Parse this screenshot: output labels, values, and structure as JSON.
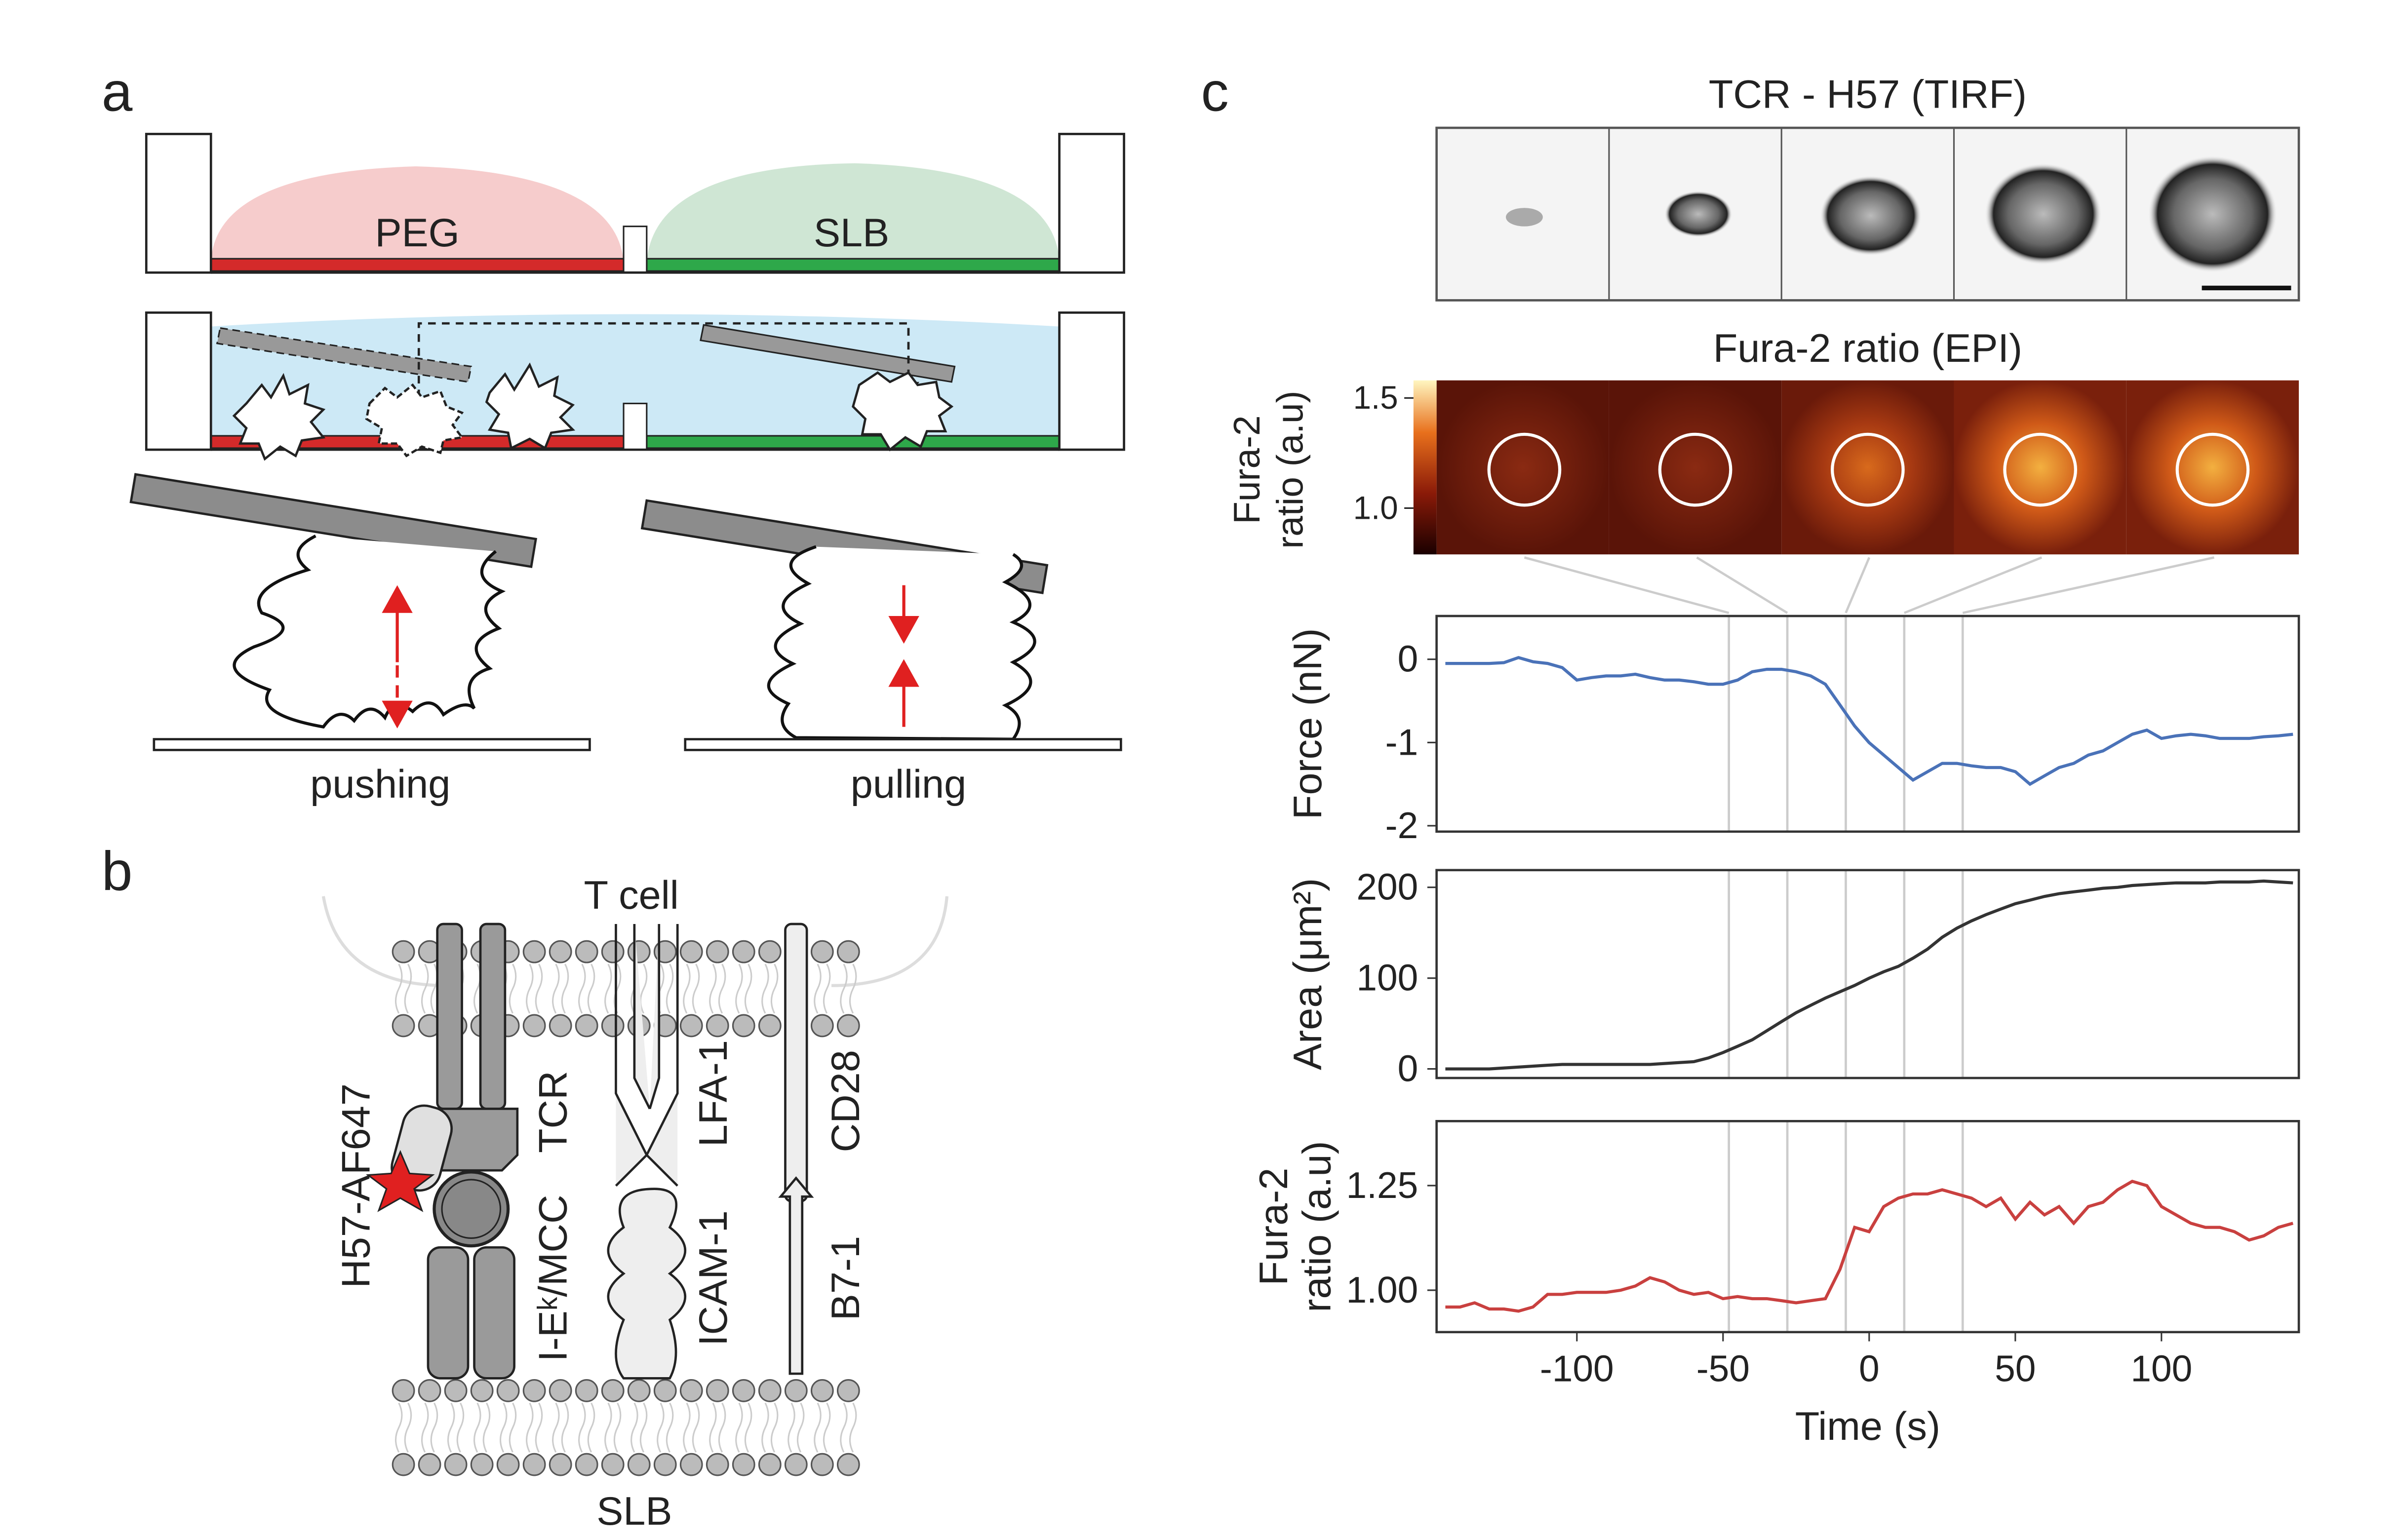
{
  "panels": {
    "a": {
      "label": "a",
      "left": "PEG",
      "right": "SLB",
      "mode_left": "pushing",
      "mode_right": "pulling"
    },
    "b": {
      "label": "b",
      "top": "T cell",
      "bottom": "SLB",
      "antibody": "H57-AF647",
      "tcr": "TCR",
      "mhc": "I-Eᵏ/MCC",
      "lfa": "LFA-1",
      "icam": "ICAM-1",
      "cd28": "CD28",
      "b7": "B7-1"
    },
    "c": {
      "label": "c",
      "tirf_title": "TCR - H57 (TIRF)",
      "epi_title": "Fura-2 ratio (EPI)",
      "colorbar": {
        "lim": [
          0.79,
          1.58
        ],
        "ticks": [
          1.5,
          {
            "value": 1,
            "label": "1.0"
          }
        ],
        "label": [
          "Fura-2",
          "ratio (a.u)"
        ]
      },
      "time_markers": [
        -48,
        -28,
        -8,
        12,
        32
      ]
    }
  },
  "chart_data": [
    {
      "type": "line",
      "ylabel": "Force (nN)",
      "color": "#4a72b8",
      "x": [
        -145,
        -140,
        -135,
        -130,
        -125,
        -120,
        -115,
        -110,
        -105,
        -100,
        -95,
        -90,
        -85,
        -80,
        -75,
        -70,
        -65,
        -60,
        -55,
        -50,
        -45,
        -40,
        -35,
        -30,
        -25,
        -20,
        -15,
        -10,
        -5,
        0,
        5,
        10,
        15,
        20,
        25,
        30,
        35,
        40,
        45,
        50,
        55,
        60,
        65,
        70,
        75,
        80,
        85,
        90,
        95,
        100,
        105,
        110,
        115,
        120,
        125,
        130,
        135,
        140,
        145
      ],
      "values": [
        -0.05,
        -0.05,
        -0.05,
        -0.05,
        -0.04,
        0.02,
        -0.03,
        -0.05,
        -0.1,
        -0.25,
        -0.22,
        -0.2,
        -0.2,
        -0.18,
        -0.22,
        -0.25,
        -0.25,
        -0.27,
        -0.3,
        -0.3,
        -0.25,
        -0.15,
        -0.12,
        -0.12,
        -0.15,
        -0.2,
        -0.3,
        -0.55,
        -0.8,
        -1.0,
        -1.15,
        -1.3,
        -1.45,
        -1.35,
        -1.25,
        -1.25,
        -1.28,
        -1.3,
        -1.3,
        -1.35,
        -1.5,
        -1.4,
        -1.3,
        -1.25,
        -1.15,
        -1.1,
        -1.0,
        -0.9,
        -0.85,
        -0.95,
        -0.92,
        -0.9,
        -0.92,
        -0.95,
        -0.95,
        -0.95,
        -0.93,
        -0.92,
        -0.9
      ],
      "xlim": [
        -148,
        147
      ],
      "ylim": [
        -2.07,
        0.52
      ],
      "yticks": [
        0,
        -1,
        -2
      ]
    },
    {
      "type": "line",
      "ylabel": "Area (μm²)",
      "color": "#333333",
      "x": [
        -145,
        -140,
        -135,
        -130,
        -125,
        -120,
        -115,
        -110,
        -105,
        -100,
        -95,
        -90,
        -85,
        -80,
        -75,
        -70,
        -65,
        -60,
        -55,
        -50,
        -45,
        -40,
        -35,
        -30,
        -25,
        -20,
        -15,
        -10,
        -5,
        0,
        5,
        10,
        15,
        20,
        25,
        30,
        35,
        40,
        45,
        50,
        55,
        60,
        65,
        70,
        75,
        80,
        85,
        90,
        95,
        100,
        105,
        110,
        115,
        120,
        125,
        130,
        135,
        140,
        145
      ],
      "values": [
        0,
        0,
        0,
        0,
        1,
        2,
        3,
        4,
        5,
        5,
        5,
        5,
        5,
        5,
        5,
        6,
        7,
        8,
        12,
        18,
        25,
        32,
        42,
        52,
        62,
        70,
        78,
        85,
        92,
        100,
        107,
        113,
        122,
        132,
        145,
        155,
        163,
        170,
        176,
        182,
        186,
        190,
        193,
        195,
        197,
        199,
        200,
        202,
        203,
        204,
        205,
        205,
        205,
        206,
        206,
        206,
        207,
        206,
        205
      ],
      "xlim": [
        -148,
        147
      ],
      "ylim": [
        -10,
        219
      ],
      "yticks": [
        0,
        100,
        200
      ]
    },
    {
      "type": "line",
      "ylabel": [
        "Fura-2",
        "ratio (a.u)"
      ],
      "xlabel": "Time (s)",
      "color": "#c9403f",
      "x": [
        -145,
        -140,
        -135,
        -130,
        -125,
        -120,
        -115,
        -110,
        -105,
        -100,
        -95,
        -90,
        -85,
        -80,
        -75,
        -70,
        -65,
        -60,
        -55,
        -50,
        -45,
        -40,
        -35,
        -30,
        -25,
        -20,
        -15,
        -10,
        -5,
        0,
        5,
        10,
        15,
        20,
        25,
        30,
        35,
        40,
        45,
        50,
        55,
        60,
        65,
        70,
        75,
        80,
        85,
        90,
        95,
        100,
        105,
        110,
        115,
        120,
        125,
        130,
        135,
        140,
        145
      ],
      "values": [
        0.96,
        0.96,
        0.97,
        0.955,
        0.955,
        0.95,
        0.96,
        0.99,
        0.99,
        0.995,
        0.995,
        0.995,
        1.0,
        1.01,
        1.03,
        1.02,
        1.0,
        0.99,
        0.995,
        0.98,
        0.985,
        0.98,
        0.98,
        0.975,
        0.97,
        0.975,
        0.98,
        1.05,
        1.15,
        1.14,
        1.2,
        1.22,
        1.23,
        1.23,
        1.24,
        1.23,
        1.22,
        1.2,
        1.22,
        1.17,
        1.21,
        1.18,
        1.2,
        1.16,
        1.2,
        1.21,
        1.24,
        1.26,
        1.25,
        1.2,
        1.18,
        1.16,
        1.15,
        1.15,
        1.14,
        1.12,
        1.13,
        1.15,
        1.16
      ],
      "xlim": [
        -148,
        147
      ],
      "ylim": [
        0.9,
        1.404
      ],
      "yticks": [
        {
          "value": 1,
          "label": "1.00"
        },
        {
          "value": 1.25,
          "label": "1.25"
        }
      ],
      "xticks": [
        -100,
        -50,
        0,
        50,
        100
      ]
    }
  ]
}
